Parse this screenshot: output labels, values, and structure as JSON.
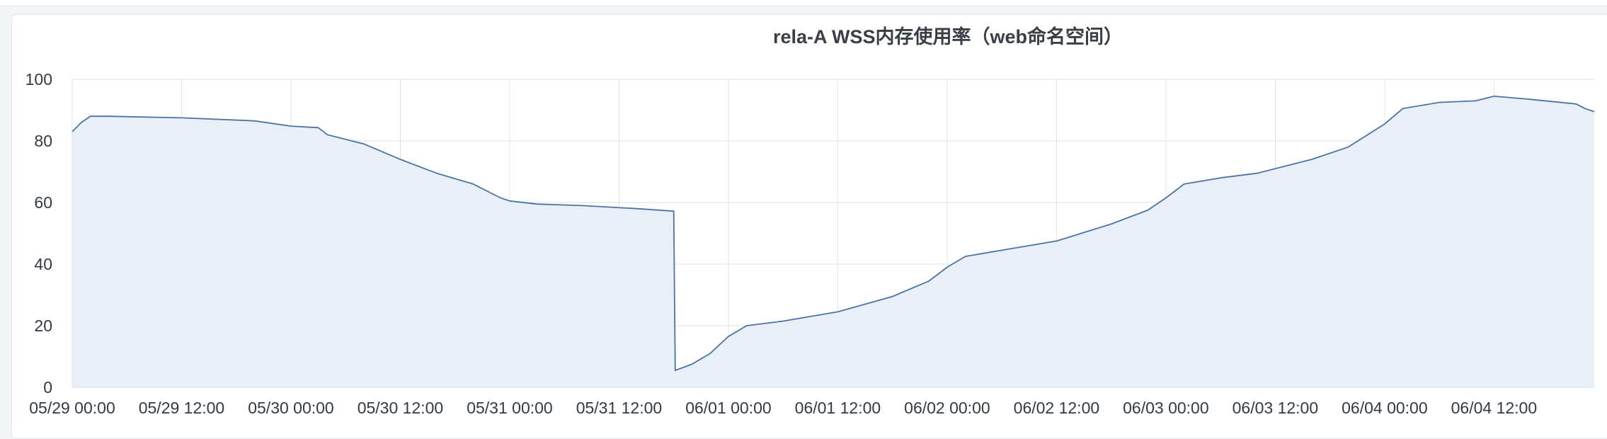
{
  "chart_data": {
    "type": "area",
    "title": "rela-A WSS内存使用率（web命名空间）",
    "xlabel": "",
    "ylabel": "",
    "ylim": [
      0,
      100
    ],
    "y_ticks": [
      0,
      20,
      40,
      60,
      80,
      100
    ],
    "x_ticks": [
      "05/29 00:00",
      "05/29 12:00",
      "05/30 00:00",
      "05/30 12:00",
      "05/31 00:00",
      "05/31 12:00",
      "06/01 00:00",
      "06/01 12:00",
      "06/02 00:00",
      "06/02 12:00",
      "06/03 00:00",
      "06/03 12:00",
      "06/04 00:00",
      "06/04 12:00"
    ],
    "x_range": [
      "05/29 00:00",
      "06/04 23:00"
    ],
    "grid": true,
    "colors": {
      "line": "#4a74a5",
      "fill": "#e9eff7",
      "grid": "#e2e2e2"
    },
    "series": [
      {
        "name": "",
        "points": [
          [
            "05/29 00:00",
            83
          ],
          [
            "05/29 01:00",
            86
          ],
          [
            "05/29 02:00",
            88
          ],
          [
            "05/29 04:00",
            88
          ],
          [
            "05/29 12:00",
            87.5
          ],
          [
            "05/29 20:00",
            86.5
          ],
          [
            "05/30 00:00",
            84.8
          ],
          [
            "05/30 03:00",
            84.3
          ],
          [
            "05/30 04:00",
            82
          ],
          [
            "05/30 06:00",
            80.5
          ],
          [
            "05/30 08:00",
            79
          ],
          [
            "05/30 12:00",
            74
          ],
          [
            "05/30 16:00",
            69.5
          ],
          [
            "05/30 20:00",
            66
          ],
          [
            "05/30 23:00",
            61.5
          ],
          [
            "05/31 00:00",
            60.5
          ],
          [
            "05/31 03:00",
            59.5
          ],
          [
            "05/31 08:00",
            59
          ],
          [
            "05/31 14:00",
            58
          ],
          [
            "05/31 18:00",
            57.2
          ],
          [
            "05/31 18:10",
            5.5
          ],
          [
            "05/31 20:00",
            7.5
          ],
          [
            "05/31 22:00",
            11
          ],
          [
            "06/01 00:00",
            16.5
          ],
          [
            "06/01 02:00",
            20
          ],
          [
            "06/01 06:00",
            21.5
          ],
          [
            "06/01 12:00",
            24.5
          ],
          [
            "06/01 18:00",
            29.5
          ],
          [
            "06/01 22:00",
            34.5
          ],
          [
            "06/02 00:00",
            39
          ],
          [
            "06/02 02:00",
            42.5
          ],
          [
            "06/02 06:00",
            44.5
          ],
          [
            "06/02 12:00",
            47.5
          ],
          [
            "06/02 18:00",
            53
          ],
          [
            "06/02 22:00",
            57.5
          ],
          [
            "06/03 00:00",
            61.5
          ],
          [
            "06/03 02:00",
            66
          ],
          [
            "06/03 06:00",
            68
          ],
          [
            "06/03 10:00",
            69.5
          ],
          [
            "06/03 16:00",
            74
          ],
          [
            "06/03 20:00",
            78
          ],
          [
            "06/04 00:00",
            85.5
          ],
          [
            "06/04 02:00",
            90.5
          ],
          [
            "06/04 06:00",
            92.5
          ],
          [
            "06/04 10:00",
            93
          ],
          [
            "06/04 12:00",
            94.5
          ],
          [
            "06/04 16:00",
            93.5
          ],
          [
            "06/04 21:00",
            92
          ],
          [
            "06/04 22:00",
            90.5
          ],
          [
            "06/04 23:00",
            89.5
          ]
        ]
      }
    ]
  }
}
